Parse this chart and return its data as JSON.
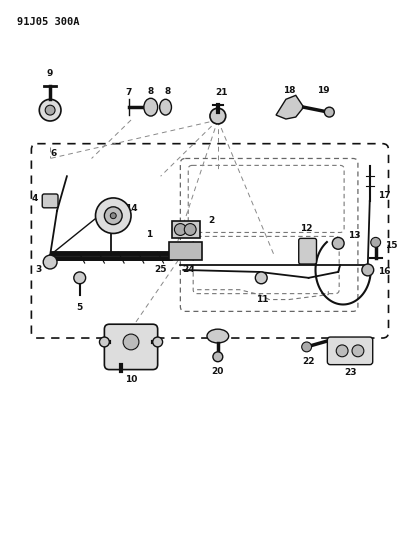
{
  "title": "91J05 300A",
  "bg_color": "#ffffff",
  "lc": "#111111",
  "fig_width": 4.12,
  "fig_height": 5.33,
  "dpi": 100
}
